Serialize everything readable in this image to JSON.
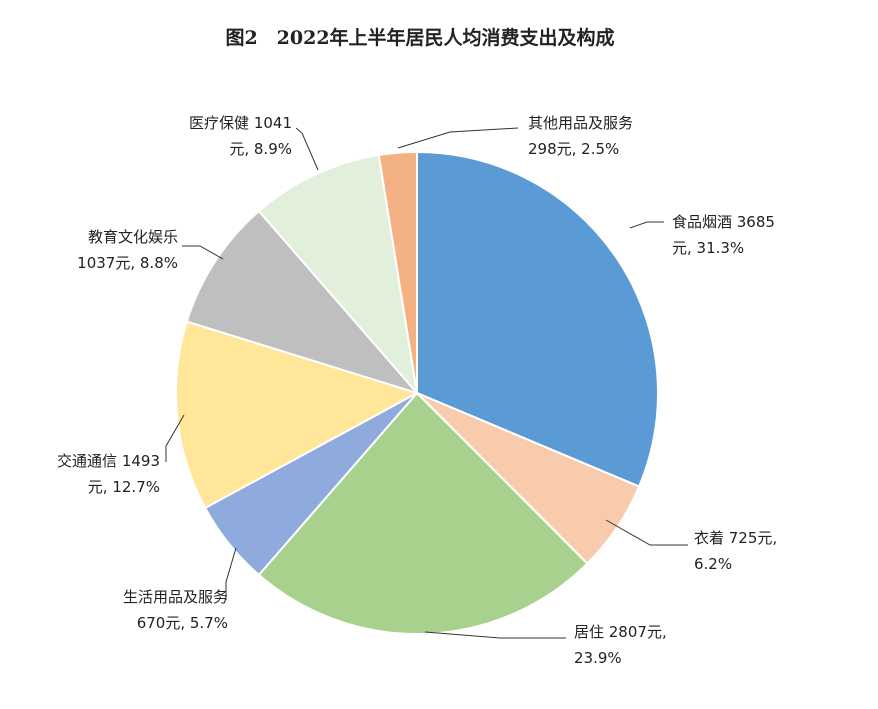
{
  "chart_data": {
    "type": "pie",
    "title": "图2　2022年上半年居民人均消费支出及构成",
    "start_angle_deg": 0,
    "direction": "clockwise",
    "slices": [
      {
        "label": "食品烟酒",
        "value": 3685,
        "percent": 31.3,
        "color": "#5b9bd5",
        "text_lines": [
          "食品烟酒 3685",
          "元, 31.3%"
        ]
      },
      {
        "label": "衣着",
        "value": 725,
        "percent": 6.2,
        "color": "#f8cbad",
        "text_lines": [
          "衣着 725元,",
          "6.2%"
        ]
      },
      {
        "label": "居住",
        "value": 2807,
        "percent": 23.9,
        "color": "#a9d18e",
        "text_lines": [
          "居住 2807元,",
          "23.9%"
        ]
      },
      {
        "label": "生活用品及服务",
        "value": 670,
        "percent": 5.7,
        "color": "#8faadc",
        "text_lines": [
          "生活用品及服务",
          "670元, 5.7%"
        ]
      },
      {
        "label": "交通通信",
        "value": 1493,
        "percent": 12.7,
        "color": "#ffe699",
        "text_lines": [
          "交通通信 1493",
          "元, 12.7%"
        ]
      },
      {
        "label": "教育文化娱乐",
        "value": 1037,
        "percent": 8.8,
        "color": "#bfbfbf",
        "text_lines": [
          "教育文化娱乐",
          "1037元, 8.8%"
        ]
      },
      {
        "label": "医疗保健",
        "value": 1041,
        "percent": 8.9,
        "color": "#e2efda",
        "text_lines": [
          "医疗保健 1041",
          "元, 8.9%"
        ]
      },
      {
        "label": "其他用品及服务",
        "value": 298,
        "percent": 2.5,
        "color": "#f4b183",
        "text_lines": [
          "其他用品及服务",
          "298元, 2.5%"
        ]
      }
    ],
    "legend": "none"
  }
}
